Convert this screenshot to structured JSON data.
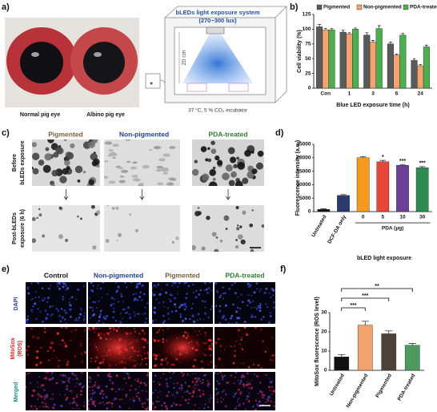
{
  "panel_labels": [
    "a)",
    "b)",
    "c)",
    "d)",
    "e)",
    "f)"
  ],
  "panel_a": {
    "eye_labels": [
      "Normal pig eye",
      "Albino pig eye"
    ],
    "system_title": "bLEDs light exposure system",
    "lux": "(270~300 lux)",
    "distance": "20 cm",
    "incubator": "37 °C, 5 % CO₂ incubator"
  },
  "panel_c": {
    "columns": [
      "Pigmented",
      "Non-pigmented",
      "PDA-treated"
    ],
    "rows": [
      [
        "Before",
        "bLEDs exposure"
      ],
      [
        "Post-bLEDs",
        "exposure (6 h)"
      ]
    ]
  },
  "panel_e": {
    "columns": [
      "Control",
      "Non-pigmented",
      "Pigmented",
      "PDA-treated"
    ],
    "rows": [
      [
        "DAPI"
      ],
      [
        "MitoSox",
        "(ROS)"
      ],
      [
        "Merged"
      ]
    ]
  },
  "chart_data": [
    {
      "type": "bar",
      "ylabel": "Cell viability (%)",
      "xlabel": "Blue LED exposure time (h)",
      "categories": [
        "Con",
        "1",
        "3",
        "6",
        "24"
      ],
      "series": [
        {
          "name": "Pigmented",
          "color": "#5a5a5a",
          "values": [
            104,
            95,
            90,
            75,
            47
          ],
          "errors": [
            4,
            3,
            4,
            3,
            3
          ]
        },
        {
          "name": "Non-pigmented",
          "color": "#f2a36f",
          "values": [
            99,
            92,
            78,
            56,
            38
          ],
          "errors": [
            2,
            2,
            3,
            2,
            2
          ]
        },
        {
          "name": "PDA-treated",
          "color": "#4cae4f",
          "values": [
            99,
            100,
            101,
            90,
            70
          ],
          "errors": [
            2,
            2,
            5,
            3,
            3
          ]
        }
      ],
      "ylim": [
        0,
        125
      ],
      "yticks": [
        0,
        25,
        50,
        75,
        100,
        125
      ]
    },
    {
      "type": "bar",
      "ylabel": "Fluorescence intensity (a.u.)",
      "xlabel": "bLED light exposure",
      "group_label": "PDA (μg)",
      "categories": [
        "Untreated",
        "DCF-DA only",
        "0",
        "5",
        "10",
        "30"
      ],
      "values": [
        800,
        6000,
        20000,
        18500,
        17200,
        16300
      ],
      "errors": [
        200,
        300,
        400,
        500,
        300,
        400
      ],
      "colors": [
        "#111111",
        "#2b3a6b",
        "#f39a1f",
        "#e4463a",
        "#6b3f98",
        "#2e8b4f"
      ],
      "significance": [
        null,
        null,
        null,
        "*",
        "***",
        "***"
      ],
      "ylim": [
        0,
        25000
      ],
      "yticks": [
        0,
        5000,
        10000,
        15000,
        20000,
        25000
      ]
    },
    {
      "type": "bar",
      "ylabel": "MitoSox fluorescence (ROS level)",
      "categories": [
        "Untreated",
        "Non-pigmented",
        "Pigmented",
        "PDA-treated"
      ],
      "values": [
        7,
        23.5,
        19,
        13
      ],
      "errors": [
        1.2,
        2,
        1.5,
        0.9
      ],
      "colors": [
        "#111111",
        "#f2a36f",
        "#4d4238",
        "#4f9a5e"
      ],
      "brackets": [
        {
          "from": 0,
          "to": 1,
          "label": "***"
        },
        {
          "from": 0,
          "to": 2,
          "label": "***"
        },
        {
          "from": 0,
          "to": 3,
          "label": "**"
        }
      ],
      "ylim": [
        0,
        30
      ],
      "yticks": [
        0,
        10,
        20,
        30
      ]
    }
  ]
}
